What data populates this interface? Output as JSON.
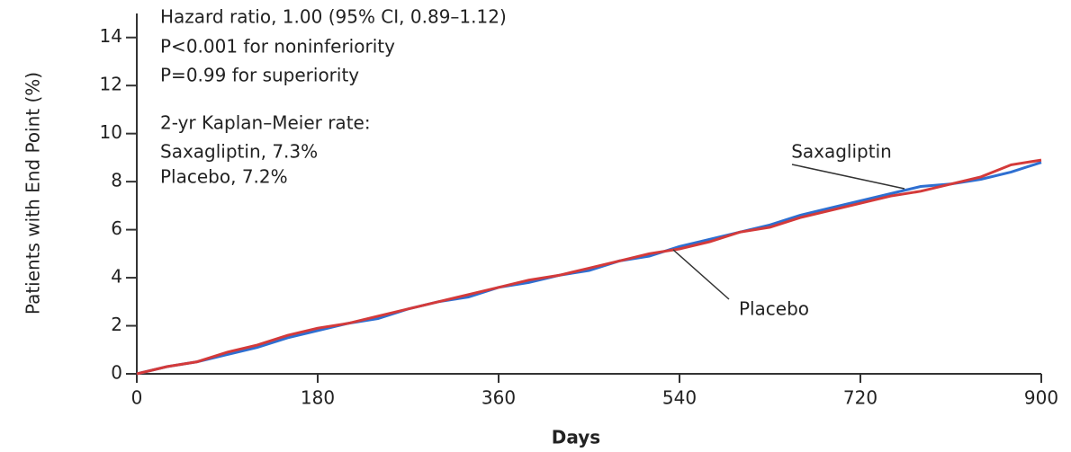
{
  "chart_data": {
    "type": "line",
    "x_label": "Days",
    "y_label": "Patients with End Point (%)",
    "annotations": [
      "Hazard ratio, 1.00 (95% CI, 0.89–1.12)",
      "P<0.001 for noninferiority",
      "P=0.99 for superiority",
      "2-yr Kaplan–Meier rate:",
      "Saxagliptin, 7.3%",
      "Placebo, 7.2%"
    ],
    "x": [
      0,
      30,
      60,
      90,
      120,
      150,
      180,
      210,
      240,
      270,
      300,
      330,
      360,
      390,
      420,
      450,
      480,
      510,
      540,
      570,
      600,
      630,
      660,
      690,
      720,
      750,
      780,
      810,
      840,
      870,
      900
    ],
    "series": [
      {
        "name": "Saxagliptin",
        "color": "#2e6fd1",
        "values": [
          0,
          0.3,
          0.5,
          0.8,
          1.1,
          1.5,
          1.8,
          2.1,
          2.3,
          2.7,
          3.0,
          3.2,
          3.6,
          3.8,
          4.1,
          4.3,
          4.7,
          4.9,
          5.3,
          5.6,
          5.9,
          6.2,
          6.6,
          6.9,
          7.2,
          7.5,
          7.8,
          7.9,
          8.1,
          8.4,
          8.8
        ]
      },
      {
        "name": "Placebo",
        "color": "#d43a3a",
        "values": [
          0,
          0.3,
          0.5,
          0.9,
          1.2,
          1.6,
          1.9,
          2.1,
          2.4,
          2.7,
          3.0,
          3.3,
          3.6,
          3.9,
          4.1,
          4.4,
          4.7,
          5.0,
          5.2,
          5.5,
          5.9,
          6.1,
          6.5,
          6.8,
          7.1,
          7.4,
          7.6,
          7.9,
          8.2,
          8.7,
          8.9
        ]
      }
    ],
    "xlim": [
      0,
      900
    ],
    "ylim": [
      0,
      15
    ],
    "xticks": [
      0,
      180,
      360,
      540,
      720,
      900
    ],
    "yticks": [
      0,
      2,
      4,
      6,
      8,
      10,
      12,
      14
    ],
    "grid": false
  }
}
